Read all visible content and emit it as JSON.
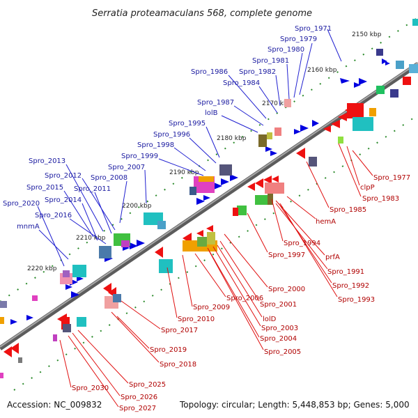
{
  "title": "Serratia proteamaculans 568, complete genome",
  "footer": {
    "accession": "Accession: NC_009832",
    "summary": "Topology: circular; Length: 5,448,853 bp; Genes: 5,000"
  },
  "colors": {
    "backbone": "#808080",
    "forward_gene": "#0000e0",
    "reverse_gene": "#ee1111",
    "forward_label": "#1a1aa0",
    "reverse_label": "#b00000",
    "tick": "#2a8a2a"
  },
  "scale_labels": [
    "2150 kbp",
    "2160 kbp",
    "2170 kbp",
    "2180 kbp",
    "2190 kbp",
    "2200 kbp",
    "2210 kbp",
    "2220 kbp"
  ],
  "forward_labels": [
    "Spro_1971",
    "Spro_1979",
    "Spro_1980",
    "Spro_1981",
    "Spro_1982",
    "Spro_1984",
    "Spro_1986",
    "Spro_1987",
    "lolB",
    "Spro_1995",
    "Spro_1996",
    "Spro_1998",
    "Spro_1999",
    "Spro_2007",
    "Spro_2008",
    "Spro_2013",
    "Spro_2012",
    "Spro_2011",
    "Spro_2015",
    "Spro_2014",
    "Spro_2020",
    "Spro_2016",
    "mnmA"
  ],
  "reverse_labels": [
    "Spro_1977",
    "clpP",
    "Spro_1983",
    "Spro_1985",
    "hemA",
    "Spro_1994",
    "Spro_1997",
    "prfA",
    "Spro_1991",
    "Spro_1992",
    "Spro_1993",
    "Spro_2000",
    "Spro_2001",
    "lolD",
    "Spro_2003",
    "Spro_2004",
    "Spro_2005",
    "Spro_2006",
    "Spro_2009",
    "Spro_2010",
    "Spro_2017",
    "Spro_2018",
    "Spro_2019",
    "Spro_2025",
    "Spro_2026",
    "Spro_2027",
    "Spro_2030"
  ]
}
